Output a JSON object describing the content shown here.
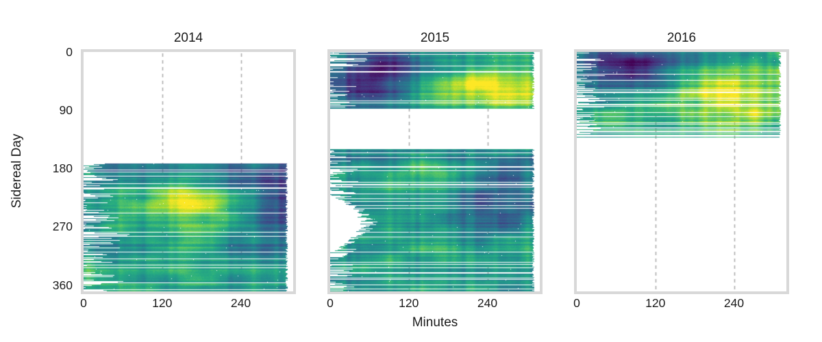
{
  "style": {
    "background": "#ffffff",
    "border_color": "#d8d8d8",
    "grid_color": "#a9a9a9",
    "text_color": "#1a1a1a"
  },
  "chart_data": {
    "type": "heatmap",
    "colormap": "viridis",
    "xlabel": "Minutes",
    "ylabel": "Sidereal Day",
    "xlim": [
      0,
      320
    ],
    "ylim": [
      370,
      0
    ],
    "xticks": [
      0,
      120,
      240
    ],
    "yticks": [
      0,
      90,
      180,
      270,
      360
    ],
    "grid_x_dashed": [
      120,
      240
    ],
    "grid_style": "dashed-vertical",
    "panels": [
      {
        "title": "2014",
        "data_regions": [
          {
            "day_range": [
              172,
              370
            ],
            "minute_range": [
              0,
              312
            ],
            "missing_row_prob": 0.07,
            "ragged_left": {
              "prob": 0.55,
              "max": 88
            }
          }
        ],
        "bright_dark_features": [
          {
            "minute": 180,
            "day": 235,
            "msig": 85,
            "dsig": 30,
            "amp": 0.42
          },
          {
            "minute": 305,
            "day": 240,
            "msig": 55,
            "dsig": 55,
            "amp": -0.35
          },
          {
            "minute": 200,
            "day": 192,
            "msig": 90,
            "dsig": 16,
            "amp": -0.18
          },
          {
            "minute": 120,
            "day": 350,
            "msig": 150,
            "dsig": 40,
            "amp": 0.1
          },
          {
            "minute": 15,
            "day": 215,
            "msig": 35,
            "dsig": 40,
            "amp": -0.12
          }
        ]
      },
      {
        "title": "2015",
        "data_regions": [
          {
            "day_range": [
              0,
              88
            ],
            "minute_range": [
              0,
              312
            ],
            "missing_row_prob": 0.06,
            "ragged_left": {
              "prob": 0.5,
              "max": 68
            }
          },
          {
            "day_range": [
              150,
              370
            ],
            "minute_range": [
              0,
              312
            ],
            "missing_row_prob": 0.07,
            "ragged_left": {
              "prob": 0.5,
              "max": 55
            },
            "notches": [
              {
                "day_range": [
                  220,
                  310
                ],
                "max_start": 58
              }
            ]
          }
        ],
        "bright_dark_features": [
          {
            "minute": 245,
            "day": 55,
            "msig": 75,
            "dsig": 32,
            "amp": 0.45
          },
          {
            "minute": 70,
            "day": 40,
            "msig": 55,
            "dsig": 26,
            "amp": -0.4
          },
          {
            "minute": 170,
            "day": 12,
            "msig": 100,
            "dsig": 14,
            "amp": -0.15
          },
          {
            "minute": 125,
            "day": 200,
            "msig": 75,
            "dsig": 30,
            "amp": 0.18
          },
          {
            "minute": 250,
            "day": 215,
            "msig": 50,
            "dsig": 45,
            "amp": -0.28
          },
          {
            "minute": 35,
            "day": 170,
            "msig": 45,
            "dsig": 16,
            "amp": -0.15
          },
          {
            "minute": 160,
            "day": 335,
            "msig": 130,
            "dsig": 40,
            "amp": 0.1
          }
        ]
      },
      {
        "title": "2016",
        "data_regions": [
          {
            "day_range": [
              0,
              80
            ],
            "minute_range": [
              0,
              312
            ],
            "missing_row_prob": 0.05,
            "ragged_left": {
              "prob": 0.5,
              "max": 75
            },
            "missing_days": [
              61,
              62
            ]
          },
          {
            "day_range": [
              80,
              118
            ],
            "minute_range": [
              0,
              312
            ],
            "missing_row_prob": 0.25,
            "ragged_left": {
              "prob": 0.6,
              "max": 65
            }
          },
          {
            "day_range": [
              118,
              132
            ],
            "minute_range": [
              0,
              312
            ],
            "missing_row_prob": 0.55,
            "ragged_left": {
              "prob": 0.7,
              "max": 60
            }
          }
        ],
        "bright_dark_features": [
          {
            "minute": 240,
            "day": 55,
            "msig": 85,
            "dsig": 45,
            "amp": 0.42
          },
          {
            "minute": 90,
            "day": 28,
            "msig": 55,
            "dsig": 26,
            "amp": -0.42
          },
          {
            "minute": 180,
            "day": 8,
            "msig": 90,
            "dsig": 12,
            "amp": -0.18
          },
          {
            "minute": 60,
            "day": 110,
            "msig": 90,
            "dsig": 30,
            "amp": 0.08
          }
        ]
      }
    ]
  }
}
